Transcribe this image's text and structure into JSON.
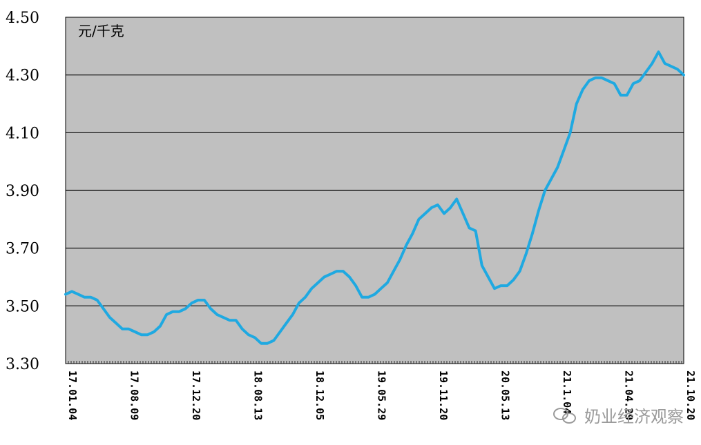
{
  "chart_data": {
    "type": "line",
    "unit_label": "元/千克",
    "ylim": [
      3.3,
      4.5
    ],
    "y_ticks": [
      "4.50",
      "4.30",
      "4.10",
      "3.90",
      "3.70",
      "3.50",
      "3.30"
    ],
    "y_tick_values": [
      4.5,
      4.3,
      4.1,
      3.9,
      3.7,
      3.5,
      3.3
    ],
    "x_tick_labels": [
      "17.01.04",
      "17.08.09",
      "17.12.20",
      "18.08.13",
      "18.12.05",
      "19.05.29",
      "19.11.20",
      "20.05.13",
      "21.1.04",
      "21.04.29",
      "21.10.20"
    ],
    "grid": true,
    "colors": {
      "line": "#1fa9e1",
      "plot_bg": "#c0c0c0",
      "grid": "#000000"
    },
    "series": [
      {
        "values": [
          3.54,
          3.55,
          3.54,
          3.53,
          3.53,
          3.52,
          3.49,
          3.46,
          3.44,
          3.42,
          3.42,
          3.41,
          3.4,
          3.4,
          3.41,
          3.43,
          3.47,
          3.48,
          3.48,
          3.49,
          3.51,
          3.52,
          3.52,
          3.49,
          3.47,
          3.46,
          3.45,
          3.45,
          3.42,
          3.4,
          3.39,
          3.37,
          3.37,
          3.38,
          3.41,
          3.44,
          3.47,
          3.51,
          3.53,
          3.56,
          3.58,
          3.6,
          3.61,
          3.62,
          3.62,
          3.6,
          3.57,
          3.53,
          3.53,
          3.54,
          3.56,
          3.58,
          3.62,
          3.66,
          3.71,
          3.75,
          3.8,
          3.82,
          3.84,
          3.85,
          3.82,
          3.84,
          3.87,
          3.82,
          3.77,
          3.76,
          3.64,
          3.6,
          3.56,
          3.57,
          3.57,
          3.59,
          3.62,
          3.68,
          3.75,
          3.83,
          3.9,
          3.94,
          3.98,
          4.04,
          4.1,
          4.2,
          4.25,
          4.28,
          4.29,
          4.29,
          4.28,
          4.27,
          4.23,
          4.23,
          4.27,
          4.28,
          4.31,
          4.34,
          4.38,
          4.34,
          4.33,
          4.32,
          4.3
        ]
      }
    ]
  },
  "watermark": {
    "text": "奶业经济观察"
  }
}
